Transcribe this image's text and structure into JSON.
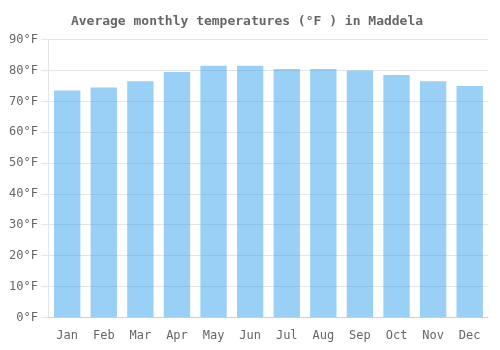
{
  "chart_data": {
    "type": "bar",
    "title": "Average monthly temperatures (°F ) in Maddela",
    "categories": [
      "Jan",
      "Feb",
      "Mar",
      "Apr",
      "May",
      "Jun",
      "Jul",
      "Aug",
      "Sep",
      "Oct",
      "Nov",
      "Dec"
    ],
    "values": [
      73.5,
      74.5,
      76.5,
      79.5,
      81.5,
      81.5,
      80.5,
      80.5,
      80.0,
      78.5,
      76.5,
      75.0
    ],
    "ylim": [
      0,
      90
    ],
    "yticks": [
      {
        "value": 0,
        "label": "0°F"
      },
      {
        "value": 10,
        "label": "10°F"
      },
      {
        "value": 20,
        "label": "20°F"
      },
      {
        "value": 30,
        "label": "30°F"
      },
      {
        "value": 40,
        "label": "40°F"
      },
      {
        "value": 50,
        "label": "50°F"
      },
      {
        "value": 60,
        "label": "60°F"
      },
      {
        "value": 70,
        "label": "70°F"
      },
      {
        "value": 80,
        "label": "80°F"
      },
      {
        "value": 90,
        "label": "90°F"
      }
    ],
    "grid": true
  }
}
